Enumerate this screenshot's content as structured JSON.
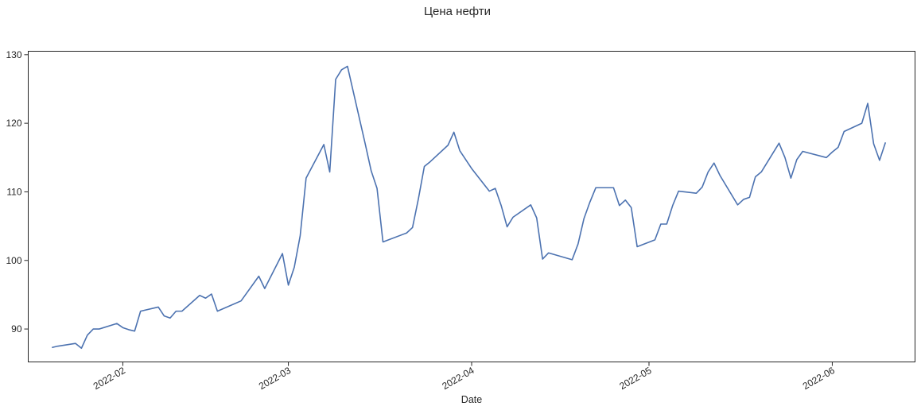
{
  "chart_data": {
    "type": "line",
    "title": "Цена нефти",
    "xlabel": "Date",
    "ylabel": "",
    "ylim": [
      85.2,
      130.5
    ],
    "yticks": [
      90,
      100,
      110,
      120,
      130
    ],
    "xlim": [
      "2022-01-16",
      "2022-06-15"
    ],
    "xticks": [
      "2022-02-01",
      "2022-03-01",
      "2022-04-01",
      "2022-05-01",
      "2022-06-01"
    ],
    "xtick_labels": [
      "2022-02",
      "2022-03",
      "2022-04",
      "2022-05",
      "2022-06"
    ],
    "grid": false,
    "legend": null,
    "line_color": "#4C72B0",
    "series": [
      {
        "x": [
          "2022-01-20",
          "2022-01-21",
          "2022-01-24",
          "2022-01-25",
          "2022-01-26",
          "2022-01-27",
          "2022-01-28",
          "2022-01-31",
          "2022-02-01",
          "2022-02-02",
          "2022-02-03",
          "2022-02-04",
          "2022-02-07",
          "2022-02-08",
          "2022-02-09",
          "2022-02-10",
          "2022-02-11",
          "2022-02-14",
          "2022-02-15",
          "2022-02-16",
          "2022-02-17",
          "2022-02-21",
          "2022-02-24",
          "2022-02-25",
          "2022-02-28",
          "2022-03-01",
          "2022-03-02",
          "2022-03-03",
          "2022-03-04",
          "2022-03-07",
          "2022-03-08",
          "2022-03-09",
          "2022-03-10",
          "2022-03-11",
          "2022-03-14",
          "2022-03-15",
          "2022-03-16",
          "2022-03-17",
          "2022-03-21",
          "2022-03-22",
          "2022-03-23",
          "2022-03-24",
          "2022-03-25",
          "2022-03-28",
          "2022-03-29",
          "2022-03-30",
          "2022-04-01",
          "2022-04-04",
          "2022-04-05",
          "2022-04-06",
          "2022-04-07",
          "2022-04-08",
          "2022-04-11",
          "2022-04-12",
          "2022-04-13",
          "2022-04-14",
          "2022-04-18",
          "2022-04-19",
          "2022-04-20",
          "2022-04-21",
          "2022-04-22",
          "2022-04-25",
          "2022-04-26",
          "2022-04-27",
          "2022-04-28",
          "2022-04-29",
          "2022-05-02",
          "2022-05-03",
          "2022-05-04",
          "2022-05-05",
          "2022-05-06",
          "2022-05-09",
          "2022-05-10",
          "2022-05-11",
          "2022-05-12",
          "2022-05-13",
          "2022-05-16",
          "2022-05-17",
          "2022-05-18",
          "2022-05-19",
          "2022-05-20",
          "2022-05-23",
          "2022-05-24",
          "2022-05-25",
          "2022-05-26",
          "2022-05-27",
          "2022-05-31",
          "2022-06-01",
          "2022-06-02",
          "2022-06-03",
          "2022-06-06",
          "2022-06-07",
          "2022-06-08",
          "2022-06-09",
          "2022-06-10"
        ],
        "y": [
          87.3,
          87.5,
          87.9,
          87.2,
          89.1,
          90.0,
          90.0,
          90.8,
          90.2,
          89.9,
          89.7,
          92.6,
          93.2,
          91.9,
          91.6,
          92.6,
          92.6,
          94.9,
          94.5,
          95.1,
          92.6,
          94.1,
          97.7,
          95.9,
          101.0,
          96.4,
          99.0,
          103.6,
          112.0,
          116.9,
          112.9,
          126.4,
          127.8,
          128.3,
          117.0,
          113.1,
          110.5,
          102.7,
          104.0,
          104.8,
          109.0,
          113.7,
          114.4,
          116.8,
          118.7,
          116.0,
          113.4,
          110.1,
          110.5,
          108.0,
          104.9,
          106.3,
          108.1,
          106.2,
          100.2,
          101.1,
          100.1,
          102.4,
          106.1,
          108.5,
          110.6,
          110.6,
          108.0,
          108.8,
          107.7,
          102.0,
          103.0,
          105.3,
          105.3,
          108.0,
          110.1,
          109.8,
          110.7,
          112.9,
          114.2,
          112.4,
          108.1,
          108.9,
          109.2,
          112.2,
          112.9,
          117.1,
          115.0,
          112.0,
          114.7,
          115.9,
          115.0,
          115.8,
          116.5,
          118.8,
          120.0,
          122.9,
          117.0,
          114.6,
          117.2
        ]
      }
    ]
  }
}
